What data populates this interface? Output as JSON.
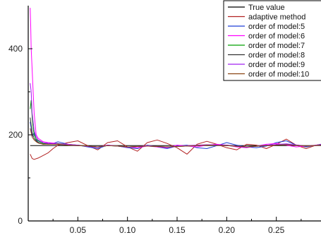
{
  "chart_data": {
    "type": "line",
    "xlim": [
      0.0,
      0.295
    ],
    "ylim": [
      0,
      500
    ],
    "x_ticks": [
      0.05,
      0.1,
      0.15,
      0.2,
      0.25
    ],
    "x_tick_labels": [
      "0.05",
      "0.10",
      "0.15",
      "0.20",
      "0.25"
    ],
    "y_ticks": [
      0,
      200,
      400
    ],
    "y_tick_labels": [
      "0",
      "200",
      "400"
    ],
    "grid": false,
    "legend_position": "top-right",
    "series": [
      {
        "name": "True value",
        "color": "#000000",
        "x": [
          0.002,
          0.295
        ],
        "y": [
          175,
          175
        ]
      },
      {
        "name": "adaptive method",
        "color": "#b22222",
        "x": [
          0.002,
          0.004,
          0.006,
          0.01,
          0.015,
          0.02,
          0.025,
          0.03,
          0.04,
          0.05,
          0.06,
          0.07,
          0.08,
          0.09,
          0.1,
          0.11,
          0.12,
          0.13,
          0.14,
          0.15,
          0.16,
          0.17,
          0.18,
          0.19,
          0.2,
          0.21,
          0.22,
          0.23,
          0.24,
          0.25,
          0.26,
          0.27,
          0.28,
          0.29,
          0.295
        ],
        "y": [
          155,
          145,
          143,
          146,
          152,
          158,
          168,
          176,
          182,
          186,
          175,
          165,
          182,
          186,
          172,
          162,
          182,
          188,
          180,
          170,
          155,
          178,
          185,
          178,
          170,
          165,
          178,
          176,
          168,
          178,
          190,
          176,
          168,
          176,
          178
        ]
      },
      {
        "name": "order of model:5",
        "color": "#1f3fd6",
        "x": [
          0.002,
          0.003,
          0.004,
          0.006,
          0.008,
          0.01,
          0.015,
          0.02,
          0.025,
          0.03,
          0.04,
          0.05,
          0.06,
          0.07,
          0.08,
          0.09,
          0.1,
          0.11,
          0.12,
          0.13,
          0.14,
          0.15,
          0.16,
          0.17,
          0.18,
          0.19,
          0.2,
          0.21,
          0.22,
          0.23,
          0.24,
          0.25,
          0.26,
          0.27,
          0.28,
          0.29,
          0.295
        ],
        "y": [
          230,
          215,
          195,
          205,
          188,
          183,
          178,
          182,
          180,
          184,
          178,
          176,
          172,
          168,
          176,
          174,
          170,
          168,
          176,
          172,
          168,
          174,
          176,
          170,
          168,
          175,
          182,
          176,
          172,
          170,
          174,
          182,
          186,
          176,
          172,
          176,
          178
        ]
      },
      {
        "name": "order of model:6",
        "color": "#ff00ff",
        "x": [
          0.002,
          0.0025,
          0.003,
          0.004,
          0.005,
          0.006,
          0.008,
          0.01,
          0.015,
          0.02,
          0.03,
          0.04,
          0.05,
          0.06,
          0.07,
          0.08,
          0.09,
          0.1,
          0.11,
          0.12,
          0.13,
          0.14,
          0.15,
          0.16,
          0.17,
          0.18,
          0.19,
          0.2,
          0.21,
          0.22,
          0.23,
          0.24,
          0.25,
          0.26,
          0.27,
          0.28,
          0.29,
          0.295
        ],
        "y": [
          495,
          455,
          400,
          350,
          300,
          250,
          200,
          192,
          184,
          182,
          180,
          178,
          176,
          174,
          172,
          176,
          174,
          172,
          170,
          174,
          172,
          170,
          176,
          174,
          172,
          176,
          178,
          176,
          172,
          170,
          174,
          178,
          180,
          176,
          172,
          174,
          176,
          177
        ]
      },
      {
        "name": "order of model:7",
        "color": "#00a000",
        "x": [
          0.002,
          0.003,
          0.004,
          0.005,
          0.006,
          0.008,
          0.01,
          0.015,
          0.02,
          0.03,
          0.04,
          0.05,
          0.06,
          0.07,
          0.08,
          0.09,
          0.1,
          0.12,
          0.14,
          0.16,
          0.18,
          0.2,
          0.22,
          0.24,
          0.26,
          0.28,
          0.295
        ],
        "y": [
          260,
          280,
          240,
          215,
          200,
          190,
          186,
          180,
          178,
          180,
          177,
          176,
          174,
          172,
          175,
          174,
          172,
          174,
          172,
          174,
          176,
          175,
          172,
          176,
          178,
          174,
          176
        ]
      },
      {
        "name": "order of model:8",
        "color": "#333333",
        "x": [
          0.002,
          0.003,
          0.004,
          0.006,
          0.008,
          0.01,
          0.015,
          0.02,
          0.03,
          0.04,
          0.05,
          0.06,
          0.07,
          0.08,
          0.09,
          0.1,
          0.12,
          0.14,
          0.16,
          0.18,
          0.2,
          0.22,
          0.24,
          0.26,
          0.28,
          0.295
        ],
        "y": [
          240,
          222,
          205,
          192,
          186,
          182,
          178,
          179,
          178,
          176,
          175,
          174,
          172,
          175,
          174,
          172,
          174,
          172,
          174,
          176,
          176,
          172,
          175,
          178,
          174,
          176
        ]
      },
      {
        "name": "order of model:9",
        "color": "#a020f0",
        "x": [
          0.002,
          0.003,
          0.004,
          0.006,
          0.008,
          0.01,
          0.015,
          0.02,
          0.03,
          0.04,
          0.05,
          0.06,
          0.07,
          0.08,
          0.09,
          0.1,
          0.12,
          0.14,
          0.16,
          0.18,
          0.2,
          0.22,
          0.24,
          0.26,
          0.28,
          0.295
        ],
        "y": [
          320,
          300,
          250,
          210,
          195,
          188,
          182,
          180,
          179,
          177,
          176,
          173,
          171,
          176,
          174,
          171,
          175,
          171,
          175,
          177,
          176,
          171,
          176,
          179,
          174,
          176
        ]
      },
      {
        "name": "order of model:10",
        "color": "#8b4513",
        "x": [
          0.002,
          0.003,
          0.004,
          0.006,
          0.008,
          0.01,
          0.015,
          0.02,
          0.03,
          0.04,
          0.05,
          0.06,
          0.07,
          0.08,
          0.09,
          0.1,
          0.12,
          0.14,
          0.16,
          0.18,
          0.2,
          0.22,
          0.24,
          0.26,
          0.28,
          0.295
        ],
        "y": [
          215,
          205,
          195,
          188,
          184,
          181,
          178,
          178,
          178,
          176,
          175,
          174,
          172,
          175,
          174,
          172,
          174,
          172,
          174,
          176,
          175,
          172,
          175,
          177,
          174,
          176
        ]
      }
    ]
  }
}
